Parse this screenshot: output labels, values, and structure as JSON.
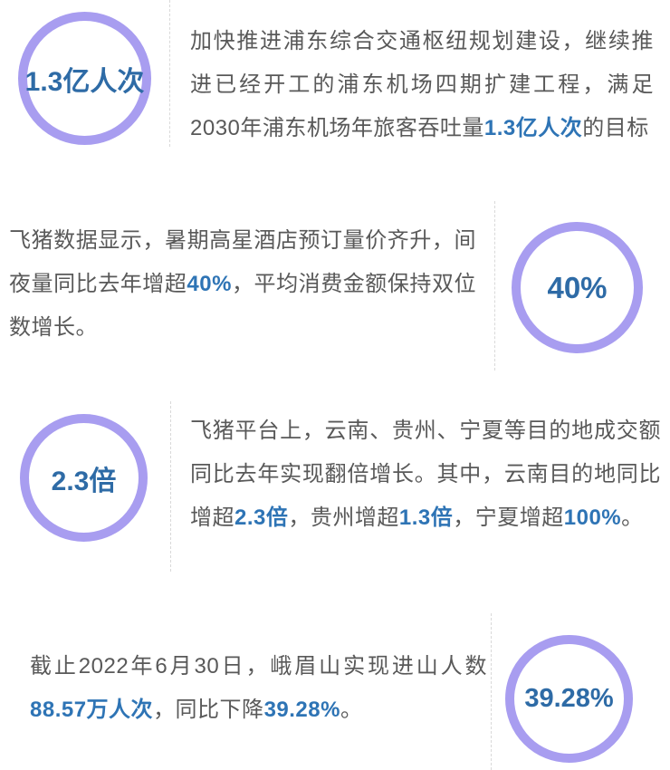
{
  "colors": {
    "circle_ring": "#a89df0",
    "circle_number": "#2e6ba6",
    "highlight_blue": "#2e74b5",
    "body_text": "#595959",
    "divider": "#d9d9d9",
    "background": "#ffffff"
  },
  "sections": [
    {
      "id": "pudong-airport",
      "circle_side": "left",
      "circle_value": "1.3亿人次",
      "paragraph": [
        {
          "text": "加快推进浦东综合交通枢纽规划建设，继续推进已经开工的浦东机场四期扩建工程，满足2030年浦东机场年旅客吞吐量",
          "bold": false
        },
        {
          "text": "1.3亿人次",
          "bold": true
        },
        {
          "text": "的目标",
          "bold": false
        }
      ]
    },
    {
      "id": "hotel-bookings",
      "circle_side": "right",
      "circle_value": "40%",
      "paragraph": [
        {
          "text": "飞猪数据显示，暑期高星酒店预订量价齐升，间夜量同比去年增超",
          "bold": false
        },
        {
          "text": "40%",
          "bold": true
        },
        {
          "text": "，平均消费金额保持双位数增长。",
          "bold": false
        }
      ]
    },
    {
      "id": "fliggy-destinations",
      "circle_side": "left",
      "circle_value": "2.3倍",
      "paragraph": [
        {
          "text": "飞猪平台上，云南、贵州、宁夏等目的地成交额同比去年实现翻倍增长。其中，云南目的地同比增超",
          "bold": false
        },
        {
          "text": "2.3倍",
          "bold": true
        },
        {
          "text": "，贵州增超",
          "bold": false
        },
        {
          "text": "1.3倍",
          "bold": true
        },
        {
          "text": "，宁夏增超",
          "bold": false
        },
        {
          "text": "100%",
          "bold": true
        },
        {
          "text": "。",
          "bold": false
        }
      ]
    },
    {
      "id": "emeishan-visitors",
      "circle_side": "right",
      "circle_value": "39.28%",
      "paragraph": [
        {
          "text": "截止2022年6月30日，峨眉山实现进山人数",
          "bold": false
        },
        {
          "text": "88.57万人次",
          "bold": true
        },
        {
          "text": "，同比下降",
          "bold": false
        },
        {
          "text": "39.28%",
          "bold": true
        },
        {
          "text": "。",
          "bold": false
        }
      ]
    }
  ]
}
